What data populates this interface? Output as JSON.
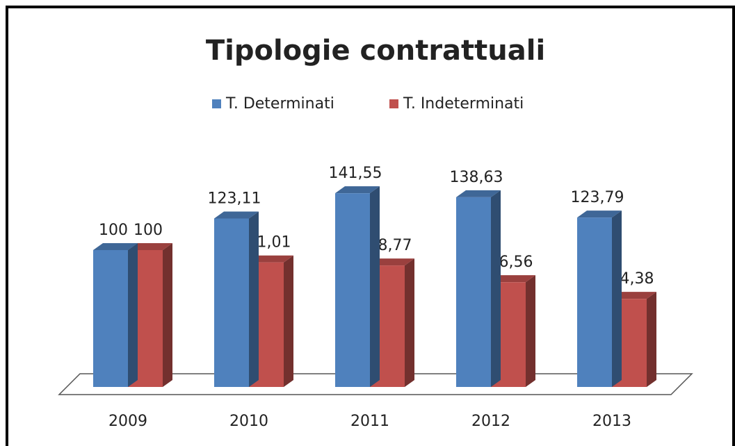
{
  "chart_data": {
    "type": "bar3d",
    "title": "Tipologie contrattuali",
    "categories": [
      "2009",
      "2010",
      "2011",
      "2012",
      "2013"
    ],
    "series": [
      {
        "name": "T. Determinati",
        "color": "#4f81bd",
        "values": [
          100,
          123.11,
          141.55,
          138.63,
          123.79
        ],
        "value_labels": [
          "100",
          "123,11",
          "141,55",
          "138,63",
          "123,79"
        ]
      },
      {
        "name": "T. Indeterminati",
        "color": "#c0504d",
        "values": [
          100,
          91.01,
          88.77,
          76.56,
          64.38
        ],
        "value_labels": [
          "100",
          "91,01",
          "88,77",
          "76,56",
          "64,38"
        ]
      }
    ],
    "legend": "top"
  }
}
